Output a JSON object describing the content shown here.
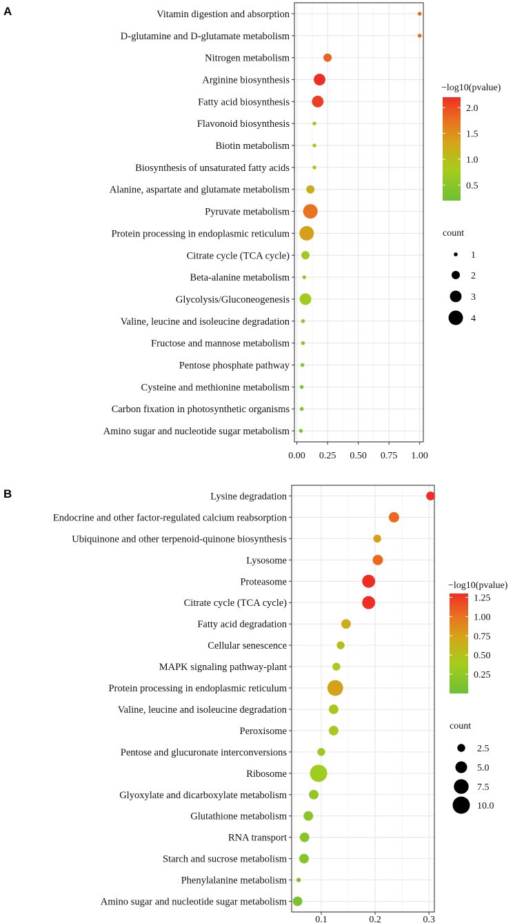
{
  "chart_data": [
    {
      "panel": "A",
      "type": "scatter",
      "title": "",
      "xlabel": "",
      "ylabel": "",
      "xlim": [
        -0.02,
        1.03
      ],
      "xticks": [
        0.0,
        0.25,
        0.5,
        0.75,
        1.0
      ],
      "xtick_labels": [
        "0.00",
        "0.25",
        "0.50",
        "0.75",
        "1.00"
      ],
      "categories": [
        "Vitamin digestion and absorption",
        "D-glutamine and D-glutamate metabolism",
        "Nitrogen metabolism",
        "Arginine biosynthesis",
        "Fatty acid biosynthesis",
        "Flavonoid biosynthesis",
        "Biotin metabolism",
        "Biosynthesis of unsaturated fatty acids",
        "Alanine, aspartate and glutamate metabolism",
        "Pyruvate metabolism",
        "Protein processing in endoplasmic reticulum",
        "Citrate cycle (TCA cycle)",
        "Beta-alanine metabolism",
        "Glycolysis/Gluconeogenesis",
        "Valine, leucine and isoleucine degradation",
        "Fructose and mannose metabolism",
        "Pentose phosphate pathway",
        "Cysteine and methionine metabolism",
        "Carbon fixation in photosynthetic organisms",
        "Amino sugar and nucleotide sugar metabolism"
      ],
      "x": [
        1.0,
        1.0,
        0.25,
        0.185,
        0.17,
        0.143,
        0.143,
        0.143,
        0.11,
        0.11,
        0.08,
        0.07,
        0.06,
        0.07,
        0.05,
        0.05,
        0.045,
        0.04,
        0.04,
        0.033
      ],
      "count": [
        1,
        1,
        2,
        3,
        3,
        1,
        1,
        1,
        2,
        4,
        4,
        2,
        1,
        3,
        1,
        1,
        1,
        1,
        1,
        1
      ],
      "neglog10p": [
        1.8,
        1.8,
        1.85,
        2.2,
        2.1,
        0.9,
        0.9,
        0.9,
        1.2,
        1.75,
        1.35,
        0.7,
        0.7,
        0.75,
        0.5,
        0.5,
        0.45,
        0.4,
        0.4,
        0.35
      ],
      "color_legend": {
        "title": "−log10(pvalue)",
        "min": 0.2,
        "max": 2.2,
        "ticks": [
          0.5,
          1.0,
          1.5,
          2.0
        ],
        "tick_labels": [
          "0.5",
          "1.0",
          "1.5",
          "2.0"
        ]
      },
      "size_legend": {
        "title": "count",
        "values": [
          1,
          2,
          3,
          4
        ],
        "labels": [
          "1",
          "2",
          "3",
          "4"
        ],
        "min": 1,
        "max": 4
      }
    },
    {
      "panel": "B",
      "type": "scatter",
      "title": "",
      "xlabel": "",
      "ylabel": "",
      "xlim": [
        0.045,
        0.31
      ],
      "xticks": [
        0.1,
        0.2,
        0.3
      ],
      "xtick_labels": [
        "0.1",
        "0.2",
        "0.3"
      ],
      "categories": [
        "Lysine degradation",
        "Endocrine and other factor-regulated calcium reabsorption",
        "Ubiquinone and other terpenoid-quinone biosynthesis",
        "Lysosome",
        "Proteasome",
        "Citrate cycle (TCA cycle)",
        "Fatty acid degradation",
        "Cellular senescence",
        "MAPK signaling pathway-plant",
        "Protein processing in endoplasmic reticulum",
        "Valine, leucine and isoleucine degradation",
        "Peroxisome",
        "Pentose and glucuronate interconversions",
        "Ribosome",
        "Glyoxylate and dicarboxylate metabolism",
        "Glutathione metabolism",
        "RNA transport",
        "Starch and sucrose metabolism",
        "Phenylalanine metabolism",
        "Amino sugar and nucleotide sugar metabolism"
      ],
      "x": [
        0.303,
        0.235,
        0.204,
        0.205,
        0.188,
        0.188,
        0.146,
        0.136,
        0.128,
        0.126,
        0.123,
        0.123,
        0.1,
        0.095,
        0.086,
        0.076,
        0.069,
        0.068,
        0.058,
        0.056
      ],
      "count": [
        3,
        4,
        2.5,
        4,
        6,
        6,
        3.5,
        2.5,
        2.5,
        8.5,
        3.5,
        3.5,
        2.5,
        10,
        3.5,
        3.5,
        3.5,
        3.5,
        1,
        3.5
      ],
      "neglog10p": [
        1.3,
        1.05,
        0.75,
        1.05,
        1.3,
        1.3,
        0.68,
        0.5,
        0.42,
        0.75,
        0.45,
        0.42,
        0.3,
        0.35,
        0.25,
        0.2,
        0.18,
        0.16,
        0.12,
        0.1
      ],
      "color_legend": {
        "title": "−log10(pvalue)",
        "min": 0.0,
        "max": 1.3,
        "ticks": [
          0.25,
          0.5,
          0.75,
          1.0,
          1.25
        ],
        "tick_labels": [
          "0.25",
          "0.50",
          "0.75",
          "1.00",
          "1.25"
        ]
      },
      "size_legend": {
        "title": "count",
        "values": [
          2.5,
          5.0,
          7.5,
          10.0
        ],
        "labels": [
          "2.5",
          "5.0",
          "7.5",
          "10.0"
        ],
        "min": 1,
        "max": 10
      }
    }
  ],
  "colors": {
    "low": "#6dbf35",
    "mid": "#c2a822",
    "high": "#ee2e24",
    "stops": [
      "#6dbf35",
      "#a6cc1c",
      "#d3a718",
      "#ea7020",
      "#ee2e24"
    ]
  }
}
